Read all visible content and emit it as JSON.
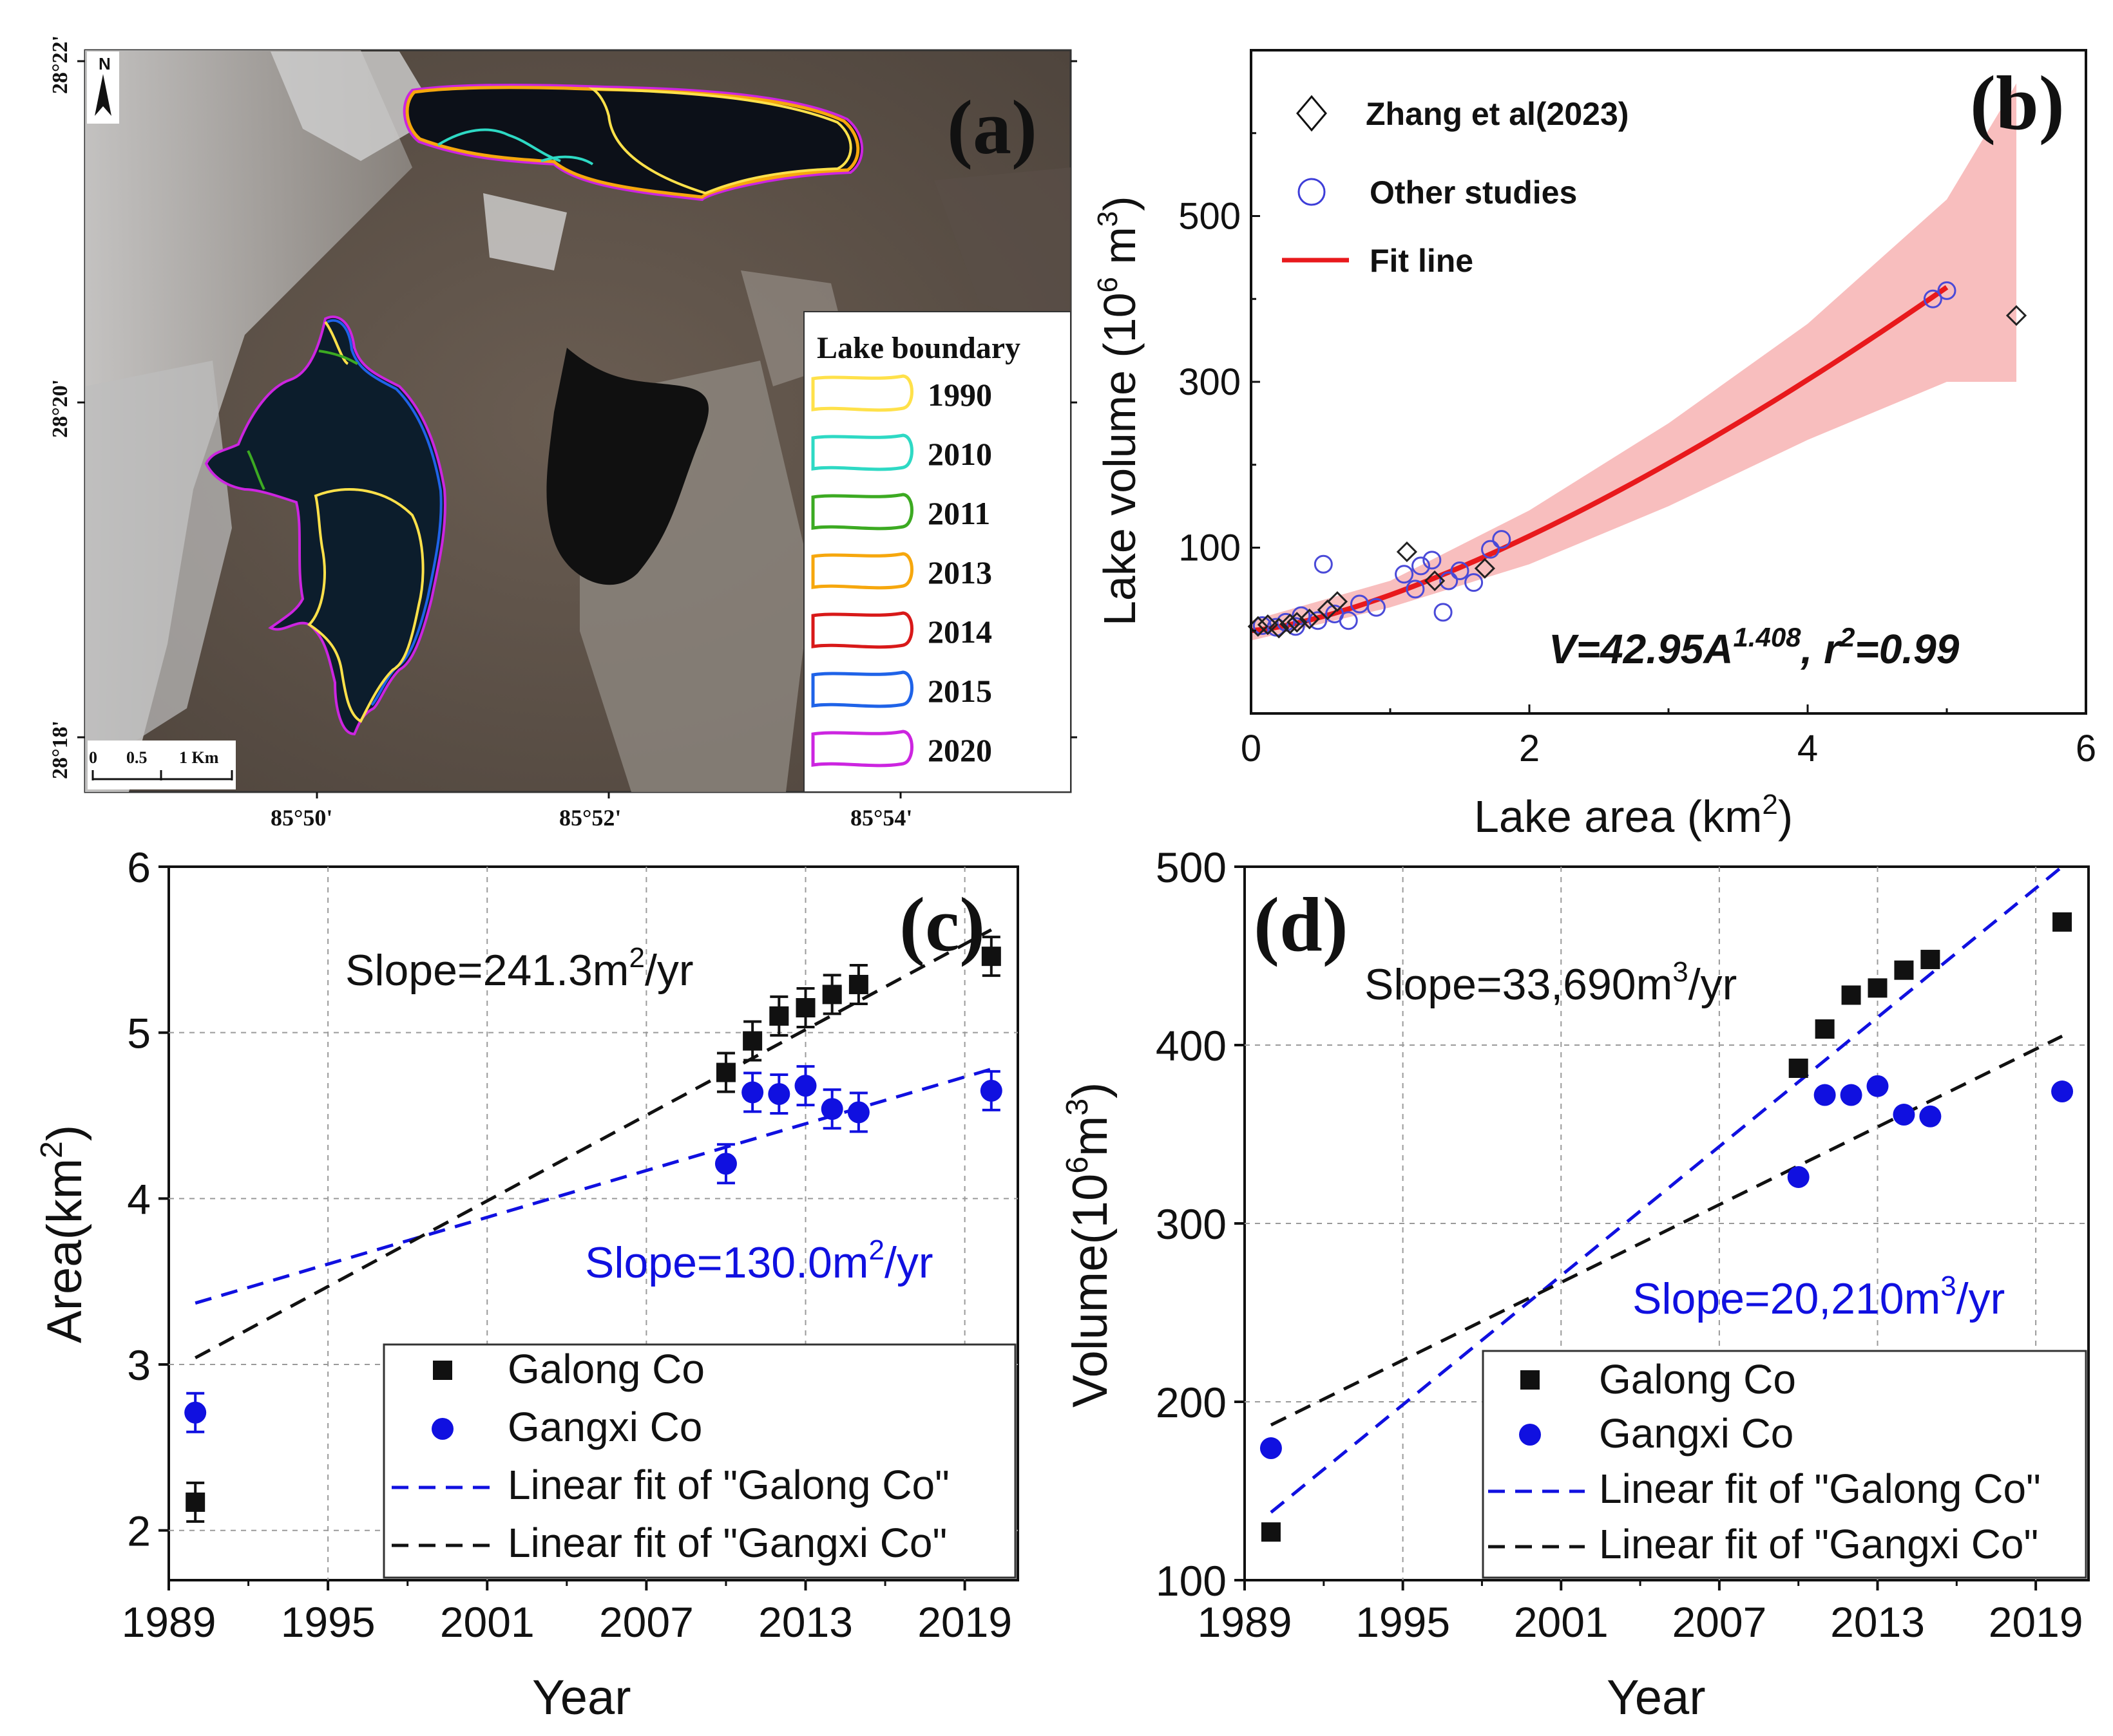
{
  "colors": {
    "black": "#111111",
    "blue": "#1010e0",
    "fit_red": "#e8191c",
    "band_red": "#f7b3b3",
    "circle_blue": "#4a4ad8",
    "grid": "#9a9a9a"
  },
  "panel_a": {
    "label": "(a)",
    "north": "N",
    "legend_title": "Lake boundary",
    "legend": [
      {
        "year": "1990",
        "color": "#ffe14a"
      },
      {
        "year": "2010",
        "color": "#2ed9c4"
      },
      {
        "year": "2011",
        "color": "#3caa22"
      },
      {
        "year": "2013",
        "color": "#f6a70d"
      },
      {
        "year": "2014",
        "color": "#d81919"
      },
      {
        "year": "2015",
        "color": "#1f63e8"
      },
      {
        "year": "2020",
        "color": "#cc25e0"
      }
    ],
    "lat_labels": [
      "28°22'",
      "28°20'",
      "28°18'"
    ],
    "lon_labels": [
      "85°50'",
      "85°52'",
      "85°54'"
    ],
    "scalebar": [
      "0",
      "0.5",
      "1 Km"
    ]
  },
  "chart_data": [
    {
      "panel": "b",
      "type": "scatter",
      "label": "(b)",
      "xlabel": "Lake area (km",
      "xlabel_sup": "2",
      "xlabel_end": ")",
      "ylabel": "Lake volume (10",
      "ylabel_sup": "6",
      "ylabel_unit": " m",
      "ylabel_sup2": "3",
      "ylabel_end": ")",
      "xlim": [
        0,
        6
      ],
      "ylim": [
        -100,
        700
      ],
      "xticks": [
        "0",
        "2",
        "4",
        "6"
      ],
      "yticks": [
        "100",
        "300",
        "500"
      ],
      "legend": [
        "Zhang et al(2023)",
        "Other studies",
        "Fit line"
      ],
      "equation_main": "V=42.95A",
      "equation_exp": "1.408",
      "equation_r": ", r",
      "equation_r_sup": "2",
      "equation_tail": "=0.99",
      "fit": {
        "a": 42.95,
        "b": 1.408,
        "x_range": [
          0,
          5.0
        ]
      },
      "band": {
        "x": [
          0,
          1,
          2,
          3,
          4,
          5,
          5.5
        ],
        "low": [
          -12,
          28,
          80,
          150,
          230,
          300,
          300
        ],
        "high": [
          12,
          60,
          145,
          250,
          370,
          520,
          660
        ]
      },
      "zhang_points": [
        {
          "x": 0.05,
          "y": 5
        },
        {
          "x": 0.12,
          "y": 7
        },
        {
          "x": 0.2,
          "y": 3
        },
        {
          "x": 0.28,
          "y": 8
        },
        {
          "x": 0.33,
          "y": 10
        },
        {
          "x": 0.42,
          "y": 14
        },
        {
          "x": 0.55,
          "y": 25
        },
        {
          "x": 0.62,
          "y": 35
        },
        {
          "x": 1.12,
          "y": 95
        },
        {
          "x": 1.32,
          "y": 60
        },
        {
          "x": 1.68,
          "y": 75
        },
        {
          "x": 5.5,
          "y": 380
        }
      ],
      "other_points": [
        {
          "x": 0.08,
          "y": 6
        },
        {
          "x": 0.18,
          "y": 4
        },
        {
          "x": 0.25,
          "y": 10
        },
        {
          "x": 0.32,
          "y": 5
        },
        {
          "x": 0.36,
          "y": 18
        },
        {
          "x": 0.48,
          "y": 12
        },
        {
          "x": 0.52,
          "y": 80
        },
        {
          "x": 0.6,
          "y": 20
        },
        {
          "x": 0.7,
          "y": 12
        },
        {
          "x": 0.78,
          "y": 32
        },
        {
          "x": 0.9,
          "y": 28
        },
        {
          "x": 1.1,
          "y": 68
        },
        {
          "x": 1.18,
          "y": 50
        },
        {
          "x": 1.22,
          "y": 78
        },
        {
          "x": 1.3,
          "y": 85
        },
        {
          "x": 1.38,
          "y": 22
        },
        {
          "x": 1.42,
          "y": 60
        },
        {
          "x": 1.5,
          "y": 72
        },
        {
          "x": 1.6,
          "y": 58
        },
        {
          "x": 1.72,
          "y": 98
        },
        {
          "x": 1.8,
          "y": 110
        },
        {
          "x": 4.9,
          "y": 400
        },
        {
          "x": 5.0,
          "y": 410
        }
      ]
    },
    {
      "panel": "c",
      "type": "scatter",
      "label": "(c)",
      "xlabel": "Year",
      "ylabel": "Area(km",
      "ylabel_sup": "2",
      "ylabel_end": ")",
      "xlim": [
        1989,
        2021
      ],
      "ylim": [
        1.7,
        6
      ],
      "xticks": [
        1989,
        1995,
        2001,
        2007,
        2013,
        2019
      ],
      "yticks": [
        2,
        3,
        4,
        5,
        6
      ],
      "slope_black_main": "Slope=241.3m",
      "slope_black_sup": "2",
      "slope_black_end": "/yr",
      "slope_blue_main": "Slope=130.0m",
      "slope_blue_sup": "2",
      "slope_blue_end": "/yr",
      "legend": [
        "Galong Co",
        "Gangxi Co",
        "Linear fit of \"Galong Co\"",
        "Linear fit of \"Gangxi Co\""
      ],
      "series": [
        {
          "name": "Galong Co",
          "marker": "square",
          "color": "black",
          "points": [
            [
              1990,
              2.17
            ],
            [
              2010,
              4.76
            ],
            [
              2011,
              4.95
            ],
            [
              2012,
              5.1
            ],
            [
              2013,
              5.15
            ],
            [
              2014,
              5.23
            ],
            [
              2015,
              5.29
            ],
            [
              2020,
              5.46
            ]
          ]
        },
        {
          "name": "Gangxi Co",
          "marker": "circle",
          "color": "blue",
          "points": [
            [
              1990,
              2.71
            ],
            [
              2010,
              4.21
            ],
            [
              2011,
              4.64
            ],
            [
              2012,
              4.63
            ],
            [
              2013,
              4.68
            ],
            [
              2014,
              4.54
            ],
            [
              2015,
              4.52
            ],
            [
              2020,
              4.65
            ]
          ]
        }
      ],
      "fits": [
        {
          "name": "Linear fit of \"Galong Co\"",
          "color": "blue",
          "from": [
            1990,
            3.37
          ],
          "to": [
            2020,
            4.78
          ]
        },
        {
          "name": "Linear fit of \"Gangxi Co\"",
          "color": "black",
          "from": [
            1990,
            3.04
          ],
          "to": [
            2020,
            5.62
          ]
        }
      ]
    },
    {
      "panel": "d",
      "type": "scatter",
      "label": "(d)",
      "xlabel": "Year",
      "ylabel": "Volume(10",
      "ylabel_sup": "6",
      "ylabel_unit": "m",
      "ylabel_sup2": "3",
      "ylabel_end": ")",
      "xlim": [
        1989,
        2021
      ],
      "ylim": [
        100,
        500
      ],
      "xticks": [
        1989,
        1995,
        2001,
        2007,
        2013,
        2019
      ],
      "yticks": [
        100,
        200,
        300,
        400,
        500
      ],
      "slope_black_main": "Slope=33,690m",
      "slope_black_sup": "3",
      "slope_black_end": "/yr",
      "slope_blue_main": "Slope=20,210m",
      "slope_blue_sup": "3",
      "slope_blue_end": "/yr",
      "legend": [
        "Galong Co",
        "Gangxi Co",
        "Linear fit of \"Galong Co\"",
        "Linear fit of \"Gangxi Co\""
      ],
      "series": [
        {
          "name": "Galong Co",
          "marker": "square",
          "color": "black",
          "points": [
            [
              1990,
              127
            ],
            [
              2010,
              387
            ],
            [
              2011,
              409
            ],
            [
              2012,
              428
            ],
            [
              2013,
              432
            ],
            [
              2014,
              442
            ],
            [
              2015,
              448
            ],
            [
              2020,
              469
            ]
          ]
        },
        {
          "name": "Gangxi Co",
          "marker": "circle",
          "color": "blue",
          "points": [
            [
              1990,
              174
            ],
            [
              2010,
              326
            ],
            [
              2011,
              372
            ],
            [
              2012,
              372
            ],
            [
              2013,
              377
            ],
            [
              2014,
              361
            ],
            [
              2015,
              360
            ],
            [
              2020,
              374
            ]
          ]
        }
      ],
      "fits": [
        {
          "name": "Linear fit of \"Galong Co\"",
          "color": "blue",
          "from": [
            1990,
            138
          ],
          "to": [
            2020,
            500
          ]
        },
        {
          "name": "Linear fit of \"Gangxi Co\"",
          "color": "black",
          "from": [
            1990,
            187
          ],
          "to": [
            2020,
            405
          ]
        }
      ]
    }
  ]
}
